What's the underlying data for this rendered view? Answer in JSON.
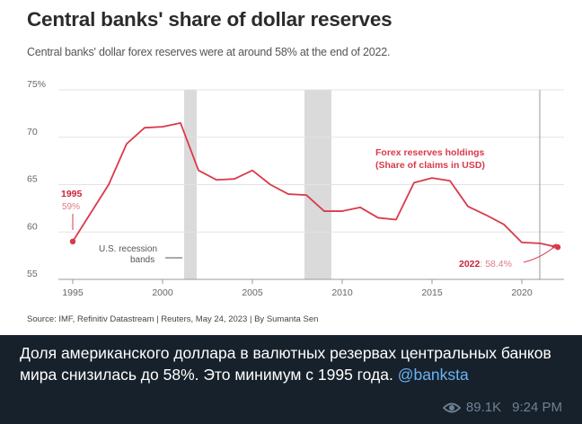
{
  "figure": {
    "title": "Central banks' share of dollar reserves",
    "subtitle": "Central banks' dollar forex reserves were at around 58% at the end of 2022.",
    "source": "Source: IMF, Refinitiv Datastream | Reuters, May 24, 2023 | By Sumanta Sen"
  },
  "chart_data": {
    "type": "line",
    "title": "Central banks' share of dollar reserves",
    "subtitle": "Central banks' dollar forex reserves were at around 58% at the end of 2022.",
    "xlabel": "",
    "ylabel": "",
    "xlim": [
      1995,
      2022
    ],
    "ylim": [
      55,
      75
    ],
    "x_ticks": [
      "1995",
      "2000",
      "2005",
      "2010",
      "2015",
      "2020"
    ],
    "y_ticks": [
      "75%",
      "70",
      "65",
      "60",
      "55"
    ],
    "grid": true,
    "series": [
      {
        "name": "Forex reserves holdings (Share of claims in USD)",
        "color": "#d93a4a",
        "x": [
          1995,
          1996,
          1997,
          1998,
          1999,
          2000,
          2001,
          2002,
          2003,
          2004,
          2005,
          2006,
          2007,
          2008,
          2009,
          2010,
          2011,
          2012,
          2013,
          2014,
          2015,
          2016,
          2017,
          2018,
          2019,
          2020,
          2021,
          2022
        ],
        "y": [
          59,
          62,
          65,
          69.3,
          71,
          71.1,
          71.5,
          66.5,
          65.5,
          65.6,
          66.5,
          65,
          64,
          63.9,
          62.2,
          62.2,
          62.6,
          61.5,
          61.3,
          65.2,
          65.7,
          65.4,
          62.7,
          61.8,
          60.8,
          58.9,
          58.8,
          58.4
        ]
      }
    ],
    "recession_bands": [
      {
        "start": 2001.2,
        "end": 2001.9
      },
      {
        "start": 2007.9,
        "end": 2009.4
      }
    ],
    "annotations": {
      "recession_label_line1": "U.S. recession",
      "recession_label_line2": "bands",
      "series_label_line1": "Forex reserves holdings",
      "series_label_line2": "(Share of claims in USD)",
      "start_year": "1995",
      "start_value": "59%",
      "end_year": "2022",
      "end_value": ": 58.4%"
    }
  },
  "post": {
    "caption": "Доля американского доллара в валютных резервах центральных банков мира снизилась до 58%. Это минимум с 1995 года.",
    "link": "@banksta",
    "views": "89.1K",
    "time": "9:24 PM"
  },
  "colors": {
    "accent": "#d93a4a",
    "background": "#17212b",
    "link": "#6ab3f3",
    "meta": "#6d8294"
  }
}
